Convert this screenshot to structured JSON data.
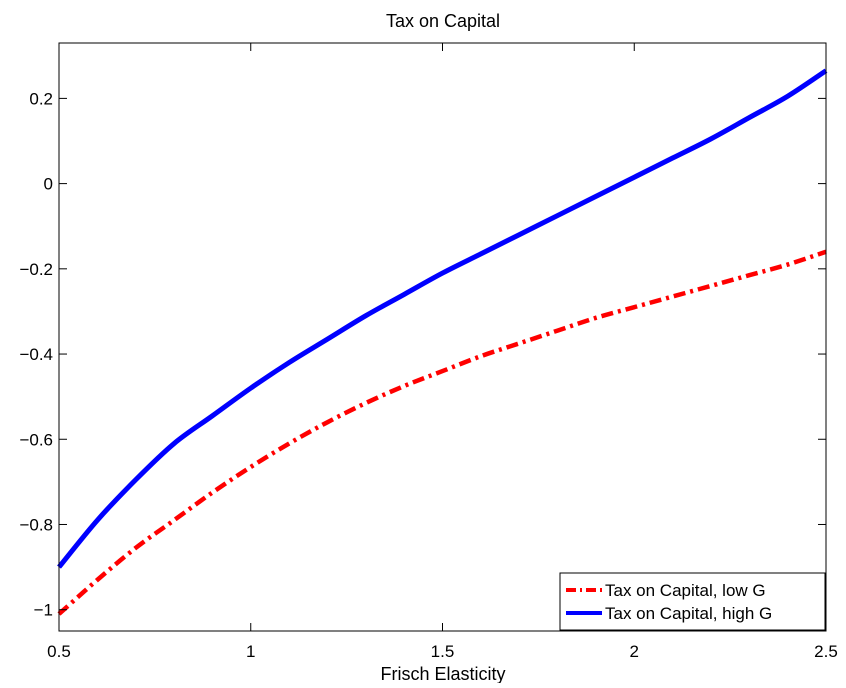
{
  "chart_data": {
    "type": "line",
    "title": "Tax on Capital",
    "xlabel": "Frisch Elasticity",
    "ylabel": "",
    "xlim": [
      0.5,
      2.5
    ],
    "ylim": [
      -1.05,
      0.33
    ],
    "xticks": [
      0.5,
      1,
      1.5,
      2,
      2.5
    ],
    "xtick_labels": [
      "0.5",
      "1",
      "1.5",
      "2",
      "2.5"
    ],
    "yticks": [
      -1,
      -0.8,
      -0.6,
      -0.4,
      -0.2,
      0,
      0.2
    ],
    "ytick_labels": [
      "−1",
      "−0.8",
      "−0.6",
      "−0.4",
      "−0.2",
      "0",
      "0.2"
    ],
    "grid": false,
    "legend_position": "bottom-right",
    "x": [
      0.5,
      0.6,
      0.7,
      0.8,
      0.9,
      1.0,
      1.1,
      1.2,
      1.3,
      1.4,
      1.5,
      1.6,
      1.7,
      1.8,
      1.9,
      2.0,
      2.1,
      2.2,
      2.3,
      2.4,
      2.5
    ],
    "series": [
      {
        "name": "Tax on Capital, low G",
        "color": "#ff0000",
        "style": "dash-dot",
        "values": [
          -1.01,
          -0.93,
          -0.855,
          -0.79,
          -0.725,
          -0.665,
          -0.61,
          -0.56,
          -0.515,
          -0.475,
          -0.44,
          -0.405,
          -0.375,
          -0.345,
          -0.315,
          -0.29,
          -0.265,
          -0.24,
          -0.215,
          -0.19,
          -0.16
        ]
      },
      {
        "name": "Tax on Capital, high G",
        "color": "#0000ff",
        "style": "solid",
        "values": [
          -0.9,
          -0.79,
          -0.695,
          -0.61,
          -0.545,
          -0.48,
          -0.42,
          -0.365,
          -0.31,
          -0.26,
          -0.21,
          -0.165,
          -0.12,
          -0.075,
          -0.03,
          0.015,
          0.06,
          0.105,
          0.155,
          0.205,
          0.265
        ]
      }
    ]
  }
}
